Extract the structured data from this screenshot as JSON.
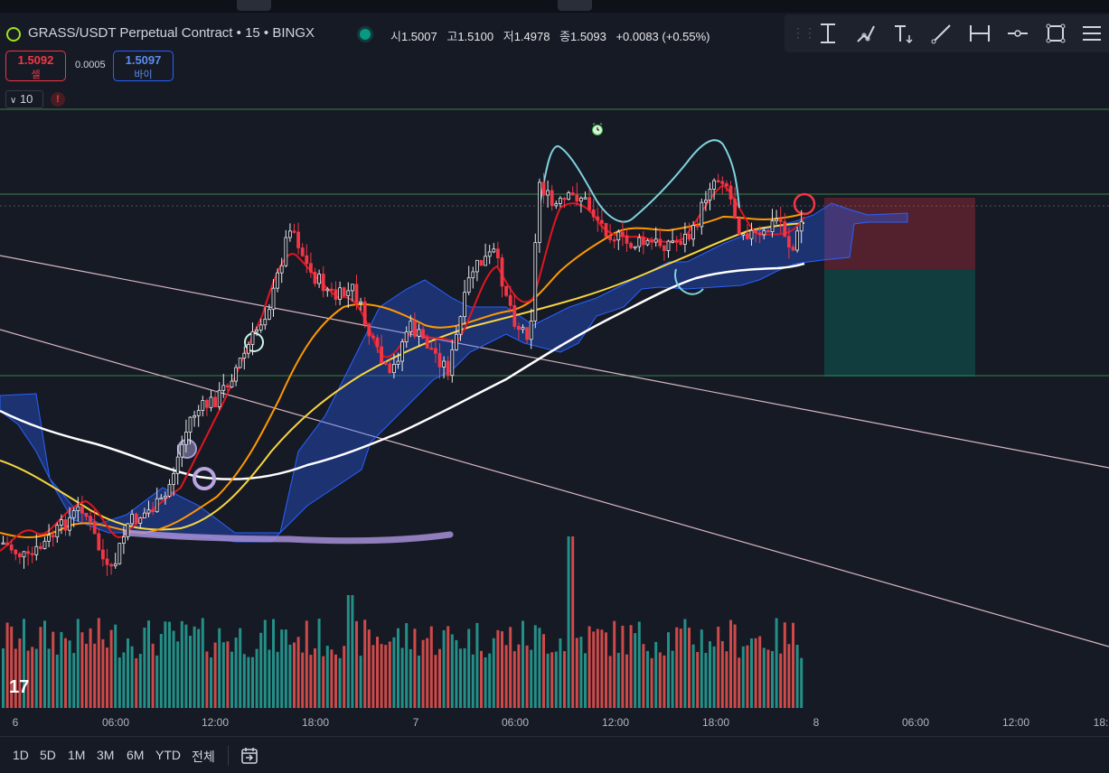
{
  "symbol": {
    "title": "GRASS/USDT Perpetual Contract • 15 • BINGX"
  },
  "ohlc": {
    "open_label": "시",
    "open": "1.5007",
    "high_label": "고",
    "high": "1.5100",
    "low_label": "저",
    "low": "1.4978",
    "close_label": "종",
    "close": "1.5093",
    "change": "+0.0083 (+0.55%)"
  },
  "trade": {
    "sell_price": "1.5092",
    "sell_label": "셀",
    "spread": "0.0005",
    "buy_price": "1.5097",
    "buy_label": "바이"
  },
  "indicator_count": "10",
  "warning_glyph": "!",
  "drawing_tools": [
    "trend-line-icon",
    "path-icon",
    "text-icon",
    "ray-icon",
    "measure-icon",
    "horizontal-line-icon",
    "rectangle-icon",
    "more-menu-icon"
  ],
  "time_axis": [
    "6",
    "06:00",
    "12:00",
    "18:00",
    "7",
    "06:00",
    "12:00",
    "18:00",
    "8",
    "06:00",
    "12:00",
    "18:"
  ],
  "range_buttons": [
    "1D",
    "5D",
    "1M",
    "3M",
    "6M",
    "YTD",
    "전체"
  ],
  "logo_text": "17",
  "colors": {
    "up": "#e8e8ea",
    "down": "#f23645",
    "vol_up": "#26a69a",
    "vol_down": "#ef5350",
    "ema_fast": "#f23645",
    "ema_mid": "#ff9800",
    "ema_slow": "#ffeb3b",
    "sma_long": "#ffffff",
    "cloud": "#2962ff",
    "pattern": "#7fd3e0"
  }
}
